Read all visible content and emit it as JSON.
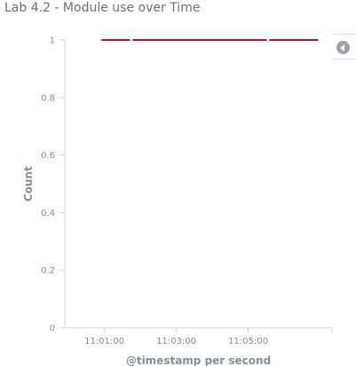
{
  "title": "Lab 4.2 - Module use over Time",
  "legend_toggle": {
    "icon": "chevron-left-icon"
  },
  "chart_data": {
    "type": "line",
    "title": "Lab 4.2 - Module use over Time",
    "xlabel": "@timestamp per second",
    "ylabel": "Count",
    "x_unit": "time",
    "xlim": [
      "10:59:54",
      "11:07:20"
    ],
    "ylim": [
      0,
      1
    ],
    "x_ticks": [
      "11:01:00",
      "11:03:00",
      "11:05:00"
    ],
    "y_ticks": [
      "0",
      "0.2",
      "0.4",
      "0.6",
      "0.8",
      "1"
    ],
    "grid": false,
    "legend": "collapsed, right",
    "series": [
      {
        "color": "#b0172b",
        "segments": [
          {
            "x": [
              "11:00:56",
              "11:01:42"
            ],
            "y": [
              1,
              1
            ]
          },
          {
            "x": [
              "11:01:48",
              "11:05:30"
            ],
            "y": [
              1,
              1
            ]
          },
          {
            "x": [
              "11:05:36",
              "11:06:56"
            ],
            "y": [
              1,
              1
            ]
          }
        ]
      }
    ]
  }
}
